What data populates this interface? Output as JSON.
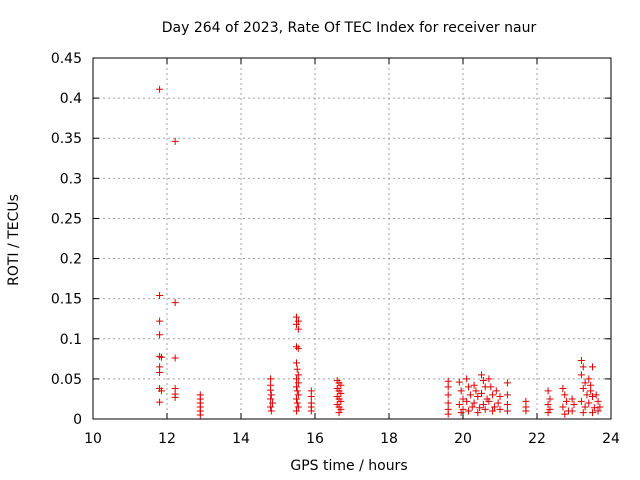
{
  "chart_data": {
    "type": "scatter",
    "title": "Day 264 of 2023, Rate Of TEC Index for receiver naur",
    "xlabel": "GPS time / hours",
    "ylabel": "ROTI / TECUs",
    "xlim": [
      10,
      24
    ],
    "ylim": [
      0,
      0.45
    ],
    "x_ticks": [
      10,
      12,
      14,
      16,
      18,
      20,
      22,
      24
    ],
    "y_ticks": [
      0,
      0.05,
      0.1,
      0.15,
      0.2,
      0.25,
      0.3,
      0.35,
      0.4,
      0.45
    ],
    "x_tick_labels": [
      "10",
      "12",
      "14",
      "16",
      "18",
      "20",
      "22",
      "24"
    ],
    "y_tick_labels": [
      "0",
      "0.05",
      "0.1",
      "0.15",
      "0.2",
      "0.25",
      "0.3",
      "0.35",
      "0.4",
      "0.45"
    ],
    "grid": true,
    "marker": "plus",
    "point_color": "#e00000",
    "points": [
      [
        11.8,
        0.411
      ],
      [
        11.8,
        0.154
      ],
      [
        11.8,
        0.122
      ],
      [
        11.8,
        0.105
      ],
      [
        11.8,
        0.078
      ],
      [
        11.85,
        0.077
      ],
      [
        11.8,
        0.065
      ],
      [
        11.8,
        0.058
      ],
      [
        11.8,
        0.038
      ],
      [
        11.85,
        0.035
      ],
      [
        11.8,
        0.021
      ],
      [
        12.22,
        0.346
      ],
      [
        12.22,
        0.145
      ],
      [
        12.22,
        0.076
      ],
      [
        12.22,
        0.038
      ],
      [
        12.22,
        0.031
      ],
      [
        12.22,
        0.027
      ],
      [
        12.9,
        0.03
      ],
      [
        12.9,
        0.025
      ],
      [
        12.9,
        0.02
      ],
      [
        12.9,
        0.015
      ],
      [
        12.9,
        0.01
      ],
      [
        12.9,
        0.005
      ],
      [
        14.8,
        0.05
      ],
      [
        14.8,
        0.042
      ],
      [
        14.8,
        0.036
      ],
      [
        14.82,
        0.03
      ],
      [
        14.8,
        0.025
      ],
      [
        14.85,
        0.02
      ],
      [
        14.8,
        0.015
      ],
      [
        14.82,
        0.01
      ],
      [
        15.5,
        0.127
      ],
      [
        15.55,
        0.122
      ],
      [
        15.5,
        0.118
      ],
      [
        15.55,
        0.112
      ],
      [
        15.5,
        0.09
      ],
      [
        15.55,
        0.088
      ],
      [
        15.5,
        0.07
      ],
      [
        15.52,
        0.062
      ],
      [
        15.55,
        0.055
      ],
      [
        15.5,
        0.05
      ],
      [
        15.55,
        0.045
      ],
      [
        15.5,
        0.04
      ],
      [
        15.52,
        0.035
      ],
      [
        15.55,
        0.03
      ],
      [
        15.5,
        0.025
      ],
      [
        15.52,
        0.02
      ],
      [
        15.55,
        0.015
      ],
      [
        15.5,
        0.01
      ],
      [
        15.9,
        0.035
      ],
      [
        15.9,
        0.028
      ],
      [
        15.9,
        0.02
      ],
      [
        15.9,
        0.015
      ],
      [
        15.9,
        0.01
      ],
      [
        16.6,
        0.048
      ],
      [
        16.65,
        0.045
      ],
      [
        16.7,
        0.042
      ],
      [
        16.6,
        0.038
      ],
      [
        16.65,
        0.035
      ],
      [
        16.7,
        0.032
      ],
      [
        16.6,
        0.028
      ],
      [
        16.65,
        0.025
      ],
      [
        16.7,
        0.022
      ],
      [
        16.6,
        0.018
      ],
      [
        16.65,
        0.015
      ],
      [
        16.7,
        0.012
      ],
      [
        16.65,
        0.008
      ],
      [
        19.6,
        0.047
      ],
      [
        19.6,
        0.04
      ],
      [
        19.6,
        0.03
      ],
      [
        19.6,
        0.02
      ],
      [
        19.6,
        0.012
      ],
      [
        19.6,
        0.006
      ],
      [
        19.9,
        0.046
      ],
      [
        19.95,
        0.035
      ],
      [
        20.0,
        0.025
      ],
      [
        19.9,
        0.018
      ],
      [
        20.0,
        0.012
      ],
      [
        19.95,
        0.008
      ],
      [
        20.1,
        0.05
      ],
      [
        20.15,
        0.04
      ],
      [
        20.2,
        0.03
      ],
      [
        20.1,
        0.022
      ],
      [
        20.25,
        0.015
      ],
      [
        20.15,
        0.01
      ],
      [
        20.3,
        0.042
      ],
      [
        20.35,
        0.035
      ],
      [
        20.4,
        0.028
      ],
      [
        20.3,
        0.02
      ],
      [
        20.45,
        0.014
      ],
      [
        20.4,
        0.008
      ],
      [
        20.5,
        0.055
      ],
      [
        20.55,
        0.048
      ],
      [
        20.6,
        0.04
      ],
      [
        20.5,
        0.032
      ],
      [
        20.65,
        0.025
      ],
      [
        20.55,
        0.018
      ],
      [
        20.6,
        0.012
      ],
      [
        20.7,
        0.05
      ],
      [
        20.75,
        0.04
      ],
      [
        20.8,
        0.03
      ],
      [
        20.7,
        0.022
      ],
      [
        20.85,
        0.015
      ],
      [
        20.8,
        0.01
      ],
      [
        20.9,
        0.035
      ],
      [
        21.0,
        0.028
      ],
      [
        20.95,
        0.02
      ],
      [
        21.0,
        0.012
      ],
      [
        21.2,
        0.045
      ],
      [
        21.2,
        0.03
      ],
      [
        21.2,
        0.018
      ],
      [
        21.2,
        0.01
      ],
      [
        21.7,
        0.022
      ],
      [
        21.7,
        0.015
      ],
      [
        21.7,
        0.01
      ],
      [
        22.3,
        0.035
      ],
      [
        22.35,
        0.025
      ],
      [
        22.3,
        0.018
      ],
      [
        22.35,
        0.012
      ],
      [
        22.3,
        0.008
      ],
      [
        22.7,
        0.038
      ],
      [
        22.75,
        0.03
      ],
      [
        22.8,
        0.022
      ],
      [
        22.7,
        0.015
      ],
      [
        22.85,
        0.01
      ],
      [
        22.75,
        0.006
      ],
      [
        22.95,
        0.025
      ],
      [
        23.0,
        0.018
      ],
      [
        22.95,
        0.01
      ],
      [
        23.2,
        0.073
      ],
      [
        23.25,
        0.065
      ],
      [
        23.2,
        0.055
      ],
      [
        23.3,
        0.045
      ],
      [
        23.25,
        0.038
      ],
      [
        23.35,
        0.03
      ],
      [
        23.2,
        0.022
      ],
      [
        23.3,
        0.015
      ],
      [
        23.25,
        0.008
      ],
      [
        23.4,
        0.05
      ],
      [
        23.45,
        0.042
      ],
      [
        23.5,
        0.065
      ],
      [
        23.45,
        0.035
      ],
      [
        23.5,
        0.028
      ],
      [
        23.4,
        0.02
      ],
      [
        23.55,
        0.014
      ],
      [
        23.5,
        0.008
      ],
      [
        23.6,
        0.03
      ],
      [
        23.65,
        0.022
      ],
      [
        23.7,
        0.015
      ],
      [
        23.65,
        0.01
      ]
    ]
  }
}
